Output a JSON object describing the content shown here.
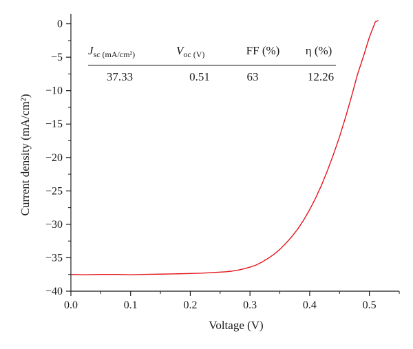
{
  "chart_data": {
    "type": "line",
    "xlabel": "Voltage (V)",
    "ylabel": "Current density (mA/cm²)",
    "xlim": [
      0.0,
      0.55
    ],
    "ylim": [
      -40,
      1.5
    ],
    "x_ticks": [
      0.0,
      0.1,
      0.2,
      0.3,
      0.4,
      0.5
    ],
    "x_tick_labels": [
      "0.0",
      "0.1",
      "0.2",
      "0.3",
      "0.4",
      "0.5"
    ],
    "y_ticks": [
      0,
      -5,
      -10,
      -15,
      -20,
      -25,
      -30,
      -35,
      -40
    ],
    "y_tick_labels": [
      "0",
      "−5",
      "−10",
      "−15",
      "−20",
      "−25",
      "−30",
      "−35",
      "−40"
    ],
    "grid": false,
    "series": [
      {
        "color": "#e3141b",
        "x": [
          0.0,
          0.02,
          0.05,
          0.08,
          0.1,
          0.12,
          0.15,
          0.18,
          0.2,
          0.22,
          0.24,
          0.26,
          0.27,
          0.28,
          0.29,
          0.3,
          0.31,
          0.32,
          0.33,
          0.34,
          0.35,
          0.36,
          0.37,
          0.38,
          0.39,
          0.4,
          0.41,
          0.42,
          0.43,
          0.44,
          0.45,
          0.46,
          0.47,
          0.48,
          0.49,
          0.5,
          0.51,
          0.515
        ],
        "y": [
          -37.5,
          -37.55,
          -37.5,
          -37.5,
          -37.55,
          -37.5,
          -37.45,
          -37.4,
          -37.35,
          -37.3,
          -37.2,
          -37.1,
          -37.0,
          -36.85,
          -36.65,
          -36.4,
          -36.1,
          -35.65,
          -35.1,
          -34.5,
          -33.75,
          -32.85,
          -31.85,
          -30.7,
          -29.35,
          -27.8,
          -26.05,
          -24.1,
          -21.9,
          -19.5,
          -16.9,
          -14.0,
          -10.9,
          -7.6,
          -4.9,
          -2.0,
          0.3,
          0.5
        ]
      }
    ],
    "table": {
      "headers": [
        "sc (mA/cm²)",
        "oc (V)",
        "FF (%)",
        "η (%)"
      ],
      "values": [
        "37.33",
        "0.51",
        "63",
        "12.26"
      ]
    }
  }
}
